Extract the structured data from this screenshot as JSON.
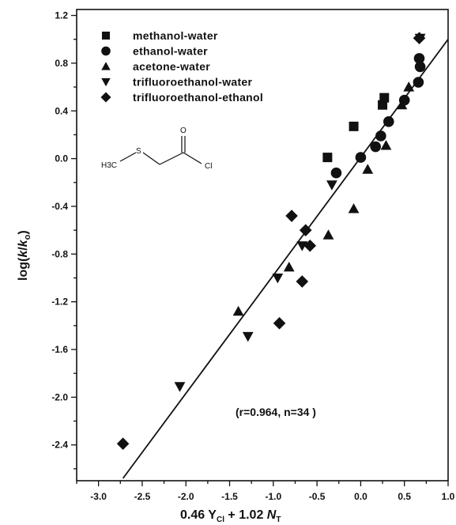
{
  "chart_data": {
    "type": "scatter",
    "xlim": [
      -3.25,
      1.0
    ],
    "ylim": [
      -2.7,
      1.25
    ],
    "x_ticks": [
      "-3.0",
      "-2.5",
      "-2.0",
      "-1.5",
      "-1.0",
      "-0.5",
      "0.0",
      "0.5",
      "1.0"
    ],
    "x_tick_values": [
      -3.0,
      -2.5,
      -2.0,
      -1.5,
      -1.0,
      -0.5,
      0.0,
      0.5,
      1.0
    ],
    "y_ticks": [
      "1.2",
      "0.8",
      "0.4",
      "0.0",
      "-0.4",
      "-0.8",
      "-1.2",
      "-1.6",
      "-2.0",
      "-2.4"
    ],
    "y_tick_values": [
      1.2,
      0.8,
      0.4,
      0.0,
      -0.4,
      -0.8,
      -1.2,
      -1.6,
      -2.0,
      -2.4
    ],
    "xlabel": {
      "pre": "0.46 Y",
      "sub1": "Cl",
      "mid": " + 1.02 ",
      "n": "N",
      "sub2": "T"
    },
    "ylabel": {
      "pre": "log(",
      "k1": "k",
      "slash": "/",
      "k2": "k",
      "sub": "o",
      "post": ")"
    },
    "annotation": "(r=0.964, n=34 )",
    "fit_line": {
      "x": [
        -2.72,
        1.0
      ],
      "y": [
        -2.68,
        1.0
      ]
    },
    "molecule": {
      "labels": [
        "H3C",
        "S",
        "O",
        "Cl"
      ]
    },
    "series": [
      {
        "name": "methanol-water",
        "marker": "square",
        "points": [
          [
            -0.38,
            0.01
          ],
          [
            -0.08,
            0.27
          ],
          [
            0.25,
            0.45
          ],
          [
            0.27,
            0.51
          ]
        ]
      },
      {
        "name": "ethanol-water",
        "marker": "circle",
        "points": [
          [
            -0.28,
            -0.12
          ],
          [
            0.0,
            0.01
          ],
          [
            0.17,
            0.1
          ],
          [
            0.23,
            0.19
          ],
          [
            0.32,
            0.31
          ],
          [
            0.5,
            0.49
          ],
          [
            0.66,
            0.64
          ],
          [
            0.67,
            0.84
          ],
          [
            0.68,
            0.77
          ]
        ]
      },
      {
        "name": "acetone-water",
        "marker": "triangle-up",
        "points": [
          [
            -1.4,
            -1.28
          ],
          [
            -0.82,
            -0.91
          ],
          [
            -0.37,
            -0.64
          ],
          [
            -0.08,
            -0.42
          ],
          [
            0.08,
            -0.09
          ],
          [
            0.29,
            0.11
          ],
          [
            0.47,
            0.45
          ],
          [
            0.55,
            0.6
          ]
        ]
      },
      {
        "name": "trifluoroethanol-water",
        "marker": "triangle-down",
        "points": [
          [
            -2.07,
            -1.91
          ],
          [
            -1.29,
            -1.49
          ],
          [
            -0.95,
            -1.0
          ],
          [
            -0.67,
            -0.73
          ],
          [
            -0.33,
            -0.22
          ],
          [
            0.68,
            1.01
          ]
        ]
      },
      {
        "name": "trifluoroethanol-ethanol",
        "marker": "diamond",
        "points": [
          [
            -2.72,
            -2.39
          ],
          [
            -0.93,
            -1.38
          ],
          [
            -0.67,
            -1.03
          ],
          [
            -0.58,
            -0.73
          ],
          [
            -0.79,
            -0.48
          ],
          [
            -0.63,
            -0.6
          ],
          [
            0.67,
            1.01
          ]
        ]
      }
    ]
  }
}
